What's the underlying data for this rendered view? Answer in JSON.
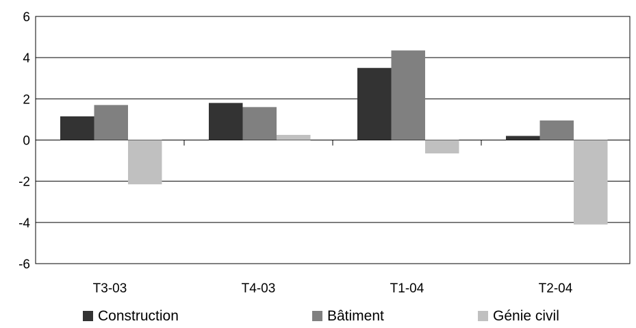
{
  "chart_data": {
    "type": "bar",
    "title": "",
    "xlabel": "",
    "ylabel": "",
    "categories": [
      "T3-03",
      "T4-03",
      "T1-04",
      "T2-04"
    ],
    "series": [
      {
        "name": "Construction",
        "color": "#333333",
        "values": [
          1.15,
          1.8,
          3.5,
          0.2
        ]
      },
      {
        "name": "Bâtiment",
        "color": "#808080",
        "values": [
          1.7,
          1.6,
          4.35,
          0.95
        ]
      },
      {
        "name": "Génie civil",
        "color": "#c0c0c0",
        "values": [
          -2.15,
          0.25,
          -0.65,
          -4.1
        ]
      }
    ],
    "ylim": [
      -6,
      6
    ],
    "yticks": [
      "-6",
      "-4",
      "-2",
      "0",
      "2",
      "4",
      "6"
    ],
    "grid": true,
    "legend_position": "bottom"
  }
}
